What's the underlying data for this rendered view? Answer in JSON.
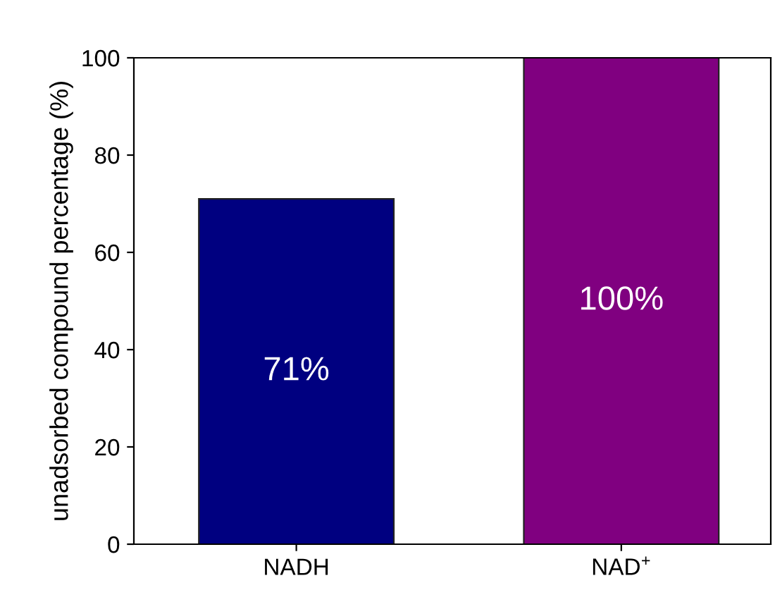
{
  "chart_data": {
    "type": "bar",
    "ylabel": "unadsorbed compound percentage (%)",
    "categories": [
      "NADH",
      "NAD$^{+}$"
    ],
    "values": [
      71,
      100
    ],
    "colors": [
      "#000080",
      "#800080"
    ],
    "value_labels": [
      "71%",
      "100%"
    ],
    "ylim": [
      0,
      100
    ],
    "yticks": [
      0,
      20,
      40,
      60,
      80,
      100
    ],
    "grid": false,
    "legend": false
  }
}
